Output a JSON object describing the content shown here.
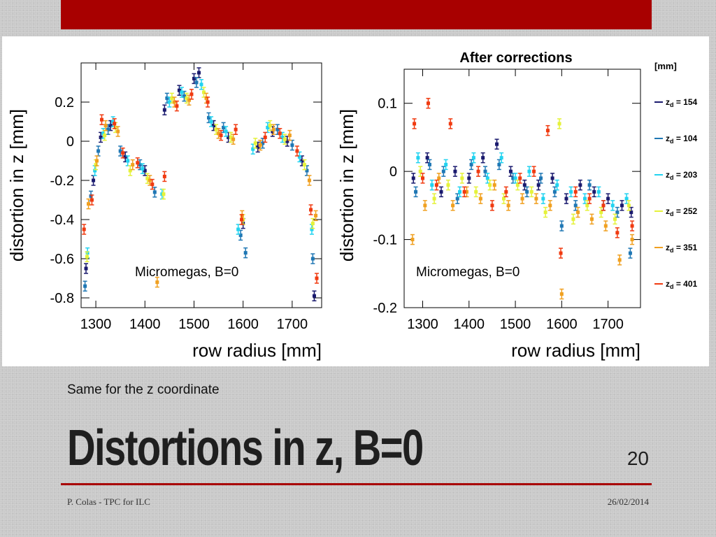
{
  "slide": {
    "subtitle": "Same for the z coordinate",
    "title": "Distortions in z, B=0",
    "page_number": "20",
    "footer_left": "P. Colas - TPC for ILC",
    "footer_right": "26/02/2014",
    "accent_color": "#a80000"
  },
  "legend": {
    "unit": "[mm]",
    "entries": [
      {
        "prefix": "z",
        "sub": "d",
        "value": "= 154",
        "color": "#1a1a6e"
      },
      {
        "prefix": "z",
        "sub": "d",
        "value": "= 104",
        "color": "#1f77b4"
      },
      {
        "prefix": "z",
        "sub": "d",
        "value": "= 203",
        "color": "#22d3f0"
      },
      {
        "prefix": "z",
        "sub": "d",
        "value": "= 252",
        "color": "#e5f23a"
      },
      {
        "prefix": "z",
        "sub": "d",
        "value": "= 351",
        "color": "#f0a020"
      },
      {
        "prefix": "z",
        "sub": "d",
        "value": "= 401",
        "color": "#f03a10"
      }
    ]
  },
  "chart_data": [
    {
      "type": "scatter",
      "title": "",
      "annotation": "Micromegas, B=0",
      "xlabel": "row radius [mm]",
      "ylabel": "distortion in z [mm]",
      "xlim": [
        1270,
        1760
      ],
      "ylim": [
        -0.85,
        0.4
      ],
      "xticks": [
        1300,
        1400,
        1500,
        1600,
        1700
      ],
      "yticks": [
        0.2,
        0,
        -0.2,
        -0.4,
        -0.6,
        -0.8
      ],
      "ytick_labels": [
        "0.2",
        "0",
        "-0.2",
        "-0.4",
        "-0.6",
        "-0.8"
      ],
      "series": [
        {
          "name": "z_d = 154",
          "color": "#1a1a6e",
          "points": [
            [
              1280,
              -0.65
            ],
            [
              1295,
              -0.2
            ],
            [
              1310,
              0.02
            ],
            [
              1330,
              0.08
            ],
            [
              1360,
              -0.08
            ],
            [
              1400,
              -0.15
            ],
            [
              1440,
              0.16
            ],
            [
              1470,
              0.26
            ],
            [
              1500,
              0.32
            ],
            [
              1510,
              0.35
            ],
            [
              1540,
              0.08
            ],
            [
              1570,
              0.02
            ],
            [
              1600,
              -0.42
            ],
            [
              1630,
              -0.03
            ],
            [
              1660,
              0.05
            ],
            [
              1690,
              0.0
            ],
            [
              1720,
              -0.1
            ],
            [
              1745,
              -0.79
            ]
          ]
        },
        {
          "name": "z_d = 104",
          "color": "#1f77b4",
          "points": [
            [
              1278,
              -0.74
            ],
            [
              1290,
              -0.28
            ],
            [
              1305,
              -0.05
            ],
            [
              1325,
              0.06
            ],
            [
              1350,
              -0.05
            ],
            [
              1390,
              -0.12
            ],
            [
              1420,
              -0.26
            ],
            [
              1445,
              0.22
            ],
            [
              1480,
              0.23
            ],
            [
              1505,
              0.3
            ],
            [
              1530,
              0.12
            ],
            [
              1560,
              0.07
            ],
            [
              1595,
              -0.48
            ],
            [
              1605,
              -0.57
            ],
            [
              1640,
              -0.01
            ],
            [
              1670,
              0.06
            ],
            [
              1700,
              -0.02
            ],
            [
              1730,
              -0.15
            ],
            [
              1742,
              -0.6
            ]
          ]
        },
        {
          "name": "z_d = 203",
          "color": "#22d3f0",
          "points": [
            [
              1283,
              -0.57
            ],
            [
              1298,
              -0.15
            ],
            [
              1315,
              0.04
            ],
            [
              1335,
              0.1
            ],
            [
              1365,
              -0.1
            ],
            [
              1395,
              -0.14
            ],
            [
              1435,
              -0.27
            ],
            [
              1450,
              0.2
            ],
            [
              1475,
              0.25
            ],
            [
              1515,
              0.29
            ],
            [
              1535,
              0.1
            ],
            [
              1565,
              0.05
            ],
            [
              1590,
              -0.45
            ],
            [
              1620,
              -0.04
            ],
            [
              1650,
              0.07
            ],
            [
              1680,
              0.02
            ],
            [
              1715,
              -0.08
            ],
            [
              1740,
              -0.45
            ]
          ]
        },
        {
          "name": "z_d = 252",
          "color": "#e5f23a",
          "points": [
            [
              1282,
              -0.59
            ],
            [
              1300,
              -0.12
            ],
            [
              1318,
              0.03
            ],
            [
              1340,
              0.07
            ],
            [
              1370,
              -0.15
            ],
            [
              1405,
              -0.19
            ],
            [
              1438,
              -0.27
            ],
            [
              1455,
              0.22
            ],
            [
              1485,
              0.22
            ],
            [
              1520,
              0.25
            ],
            [
              1545,
              0.06
            ],
            [
              1575,
              0.02
            ],
            [
              1600,
              -0.4
            ],
            [
              1625,
              -0.01
            ],
            [
              1655,
              0.08
            ],
            [
              1685,
              0.01
            ],
            [
              1725,
              -0.12
            ],
            [
              1742,
              -0.42
            ]
          ]
        },
        {
          "name": "z_d = 351",
          "color": "#f0a020",
          "points": [
            [
              1285,
              -0.32
            ],
            [
              1302,
              -0.1
            ],
            [
              1320,
              0.08
            ],
            [
              1345,
              0.05
            ],
            [
              1375,
              -0.12
            ],
            [
              1410,
              -0.2
            ],
            [
              1425,
              -0.72
            ],
            [
              1460,
              0.2
            ],
            [
              1490,
              0.21
            ],
            [
              1525,
              0.22
            ],
            [
              1550,
              0.04
            ],
            [
              1580,
              0.01
            ],
            [
              1598,
              -0.38
            ],
            [
              1635,
              -0.02
            ],
            [
              1662,
              0.06
            ],
            [
              1695,
              0.03
            ],
            [
              1735,
              -0.2
            ],
            [
              1748,
              -0.38
            ]
          ]
        },
        {
          "name": "z_d = 401",
          "color": "#f03a10",
          "points": [
            [
              1276,
              -0.45
            ],
            [
              1292,
              -0.3
            ],
            [
              1312,
              0.11
            ],
            [
              1338,
              0.09
            ],
            [
              1355,
              -0.06
            ],
            [
              1385,
              -0.11
            ],
            [
              1415,
              -0.22
            ],
            [
              1440,
              -0.18
            ],
            [
              1465,
              0.18
            ],
            [
              1495,
              0.24
            ],
            [
              1528,
              0.2
            ],
            [
              1555,
              0.03
            ],
            [
              1585,
              0.06
            ],
            [
              1597,
              -0.4
            ],
            [
              1645,
              0.02
            ],
            [
              1675,
              0.04
            ],
            [
              1710,
              -0.05
            ],
            [
              1738,
              -0.35
            ],
            [
              1750,
              -0.7
            ]
          ]
        }
      ]
    },
    {
      "type": "scatter",
      "title": "After corrections",
      "annotation": "Micromegas, B=0",
      "xlabel": "row radius [mm]",
      "ylabel": "distortion in z [mm]",
      "xlim": [
        1260,
        1770
      ],
      "ylim": [
        -0.2,
        0.15
      ],
      "xticks": [
        1300,
        1400,
        1500,
        1600,
        1700
      ],
      "yticks": [
        0.1,
        0,
        -0.1,
        -0.2
      ],
      "ytick_labels": [
        "0.1",
        "0",
        "-0.1",
        "-0.2"
      ],
      "series": [
        {
          "name": "z_d = 154",
          "color": "#1a1a6e",
          "points": [
            [
              1280,
              -0.01
            ],
            [
              1310,
              0.02
            ],
            [
              1340,
              -0.03
            ],
            [
              1370,
              0.0
            ],
            [
              1400,
              -0.01
            ],
            [
              1430,
              0.02
            ],
            [
              1460,
              0.04
            ],
            [
              1490,
              0.0
            ],
            [
              1520,
              -0.02
            ],
            [
              1550,
              -0.02
            ],
            [
              1580,
              -0.01
            ],
            [
              1610,
              -0.04
            ],
            [
              1640,
              -0.02
            ],
            [
              1670,
              -0.03
            ],
            [
              1700,
              -0.04
            ],
            [
              1730,
              -0.05
            ],
            [
              1750,
              -0.06
            ]
          ]
        },
        {
          "name": "z_d = 104",
          "color": "#1f77b4",
          "points": [
            [
              1285,
              -0.03
            ],
            [
              1315,
              0.01
            ],
            [
              1345,
              0.0
            ],
            [
              1375,
              -0.04
            ],
            [
              1405,
              0.01
            ],
            [
              1435,
              0.0
            ],
            [
              1465,
              0.01
            ],
            [
              1495,
              -0.01
            ],
            [
              1525,
              -0.03
            ],
            [
              1555,
              -0.01
            ],
            [
              1585,
              -0.03
            ],
            [
              1600,
              -0.08
            ],
            [
              1630,
              -0.05
            ],
            [
              1660,
              -0.02
            ],
            [
              1690,
              -0.05
            ],
            [
              1720,
              -0.06
            ],
            [
              1748,
              -0.12
            ]
          ]
        },
        {
          "name": "z_d = 203",
          "color": "#22d3f0",
          "points": [
            [
              1290,
              0.02
            ],
            [
              1320,
              -0.02
            ],
            [
              1350,
              0.01
            ],
            [
              1380,
              -0.03
            ],
            [
              1410,
              0.02
            ],
            [
              1440,
              -0.01
            ],
            [
              1470,
              0.02
            ],
            [
              1500,
              -0.01
            ],
            [
              1530,
              0.0
            ],
            [
              1560,
              -0.04
            ],
            [
              1590,
              -0.02
            ],
            [
              1620,
              -0.03
            ],
            [
              1650,
              -0.04
            ],
            [
              1680,
              -0.03
            ],
            [
              1710,
              -0.05
            ],
            [
              1740,
              -0.04
            ]
          ]
        },
        {
          "name": "z_d = 252",
          "color": "#e5f23a",
          "points": [
            [
              1295,
              0.0
            ],
            [
              1325,
              -0.04
            ],
            [
              1355,
              -0.02
            ],
            [
              1385,
              -0.01
            ],
            [
              1415,
              -0.03
            ],
            [
              1445,
              -0.02
            ],
            [
              1475,
              -0.04
            ],
            [
              1505,
              -0.02
            ],
            [
              1535,
              -0.03
            ],
            [
              1565,
              -0.06
            ],
            [
              1595,
              0.07
            ],
            [
              1625,
              -0.07
            ],
            [
              1655,
              -0.05
            ],
            [
              1685,
              -0.06
            ],
            [
              1715,
              -0.07
            ],
            [
              1745,
              -0.05
            ]
          ]
        },
        {
          "name": "z_d = 351",
          "color": "#f0a020",
          "points": [
            [
              1278,
              -0.1
            ],
            [
              1305,
              -0.05
            ],
            [
              1335,
              -0.01
            ],
            [
              1365,
              -0.05
            ],
            [
              1395,
              -0.03
            ],
            [
              1425,
              -0.04
            ],
            [
              1455,
              -0.02
            ],
            [
              1485,
              -0.05
            ],
            [
              1515,
              -0.04
            ],
            [
              1545,
              -0.04
            ],
            [
              1575,
              -0.05
            ],
            [
              1600,
              -0.18
            ],
            [
              1635,
              -0.06
            ],
            [
              1665,
              -0.07
            ],
            [
              1695,
              -0.08
            ],
            [
              1725,
              -0.13
            ],
            [
              1752,
              -0.1
            ]
          ]
        },
        {
          "name": "z_d = 401",
          "color": "#f03a10",
          "points": [
            [
              1282,
              0.07
            ],
            [
              1300,
              -0.01
            ],
            [
              1312,
              0.1
            ],
            [
              1330,
              -0.02
            ],
            [
              1360,
              0.07
            ],
            [
              1390,
              -0.03
            ],
            [
              1420,
              0.0
            ],
            [
              1450,
              -0.05
            ],
            [
              1480,
              -0.03
            ],
            [
              1510,
              -0.01
            ],
            [
              1540,
              0.0
            ],
            [
              1570,
              0.06
            ],
            [
              1598,
              -0.12
            ],
            [
              1630,
              -0.03
            ],
            [
              1660,
              -0.04
            ],
            [
              1690,
              -0.05
            ],
            [
              1720,
              -0.09
            ],
            [
              1752,
              -0.08
            ]
          ]
        }
      ]
    }
  ]
}
